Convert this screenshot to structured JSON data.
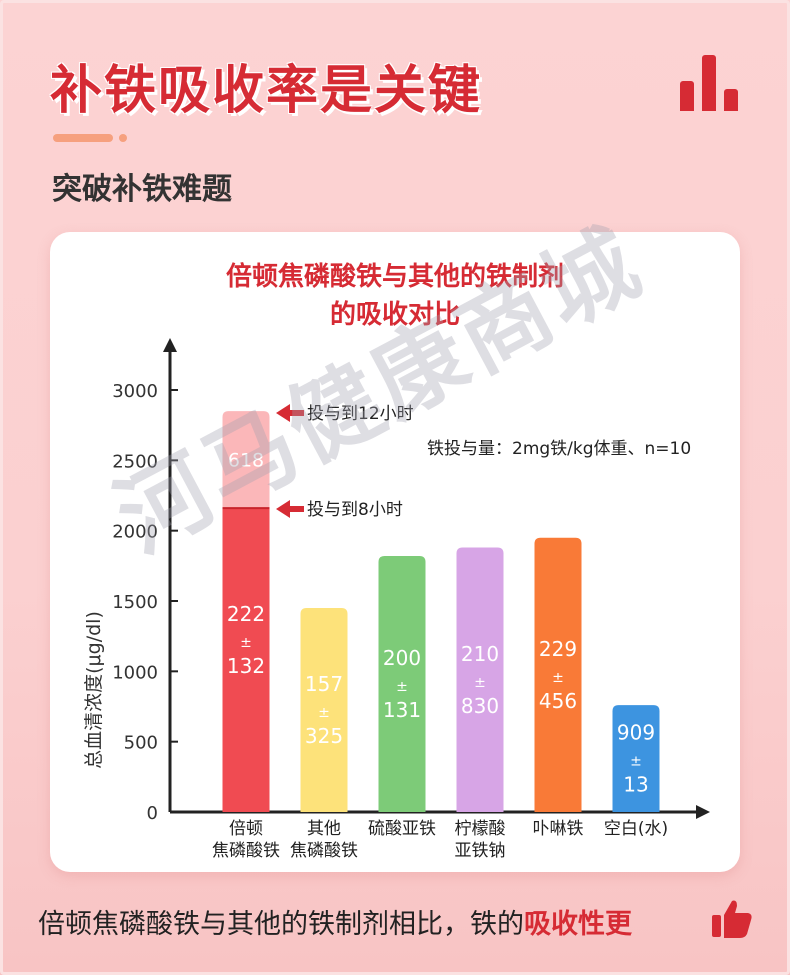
{
  "header": {
    "title": "补铁吸收率是关键",
    "subtitle": "突破补铁难题",
    "icon": "bar-chart-icon"
  },
  "colors": {
    "accent": "#d62b34",
    "dash": "#f6a07e"
  },
  "chart_data": {
    "type": "bar",
    "title_line1": "倍顿焦磷酸铁与其他的铁制剂",
    "title_line2": "的吸收对比",
    "ylabel": "总血清浓度(μg/dl)",
    "ylim": [
      0,
      3000
    ],
    "yticks": [
      "0",
      "500",
      "1000",
      "1500",
      "2000",
      "2500",
      "3000"
    ],
    "note": "铁投与量：2mg铁/kg体重、n=10",
    "annotations": [
      {
        "text": "投与到12小时",
        "value": 2850
      },
      {
        "text": "投与到8小时",
        "value": 2160
      }
    ],
    "categories": [
      {
        "line1": "倍顿",
        "line2": "焦磷酸铁"
      },
      {
        "line1": "其他",
        "line2": "焦磷酸铁"
      },
      {
        "line1": "硫酸亚铁",
        "line2": ""
      },
      {
        "line1": "柠檬酸",
        "line2": "亚铁钠"
      },
      {
        "line1": "卟啉铁",
        "line2": ""
      },
      {
        "line1": "空白(水)",
        "line2": ""
      }
    ],
    "series": [
      {
        "values": [
          2160,
          1450,
          1820,
          1880,
          1950,
          760
        ],
        "labels": [
          [
            "222",
            "±",
            "132"
          ],
          [
            "157",
            "±",
            "325"
          ],
          [
            "200",
            "±",
            "131"
          ],
          [
            "210",
            "±",
            "830"
          ],
          [
            "229",
            "±",
            "456"
          ],
          [
            "909",
            "±",
            "13"
          ]
        ],
        "colors": [
          "#f04b52",
          "#fde27a",
          "#7dcb78",
          "#d7a5e6",
          "#f97a37",
          "#3d94e0"
        ]
      },
      {
        "values": [
          690,
          0,
          0,
          0,
          0,
          0
        ],
        "labels": [
          [
            "618"
          ],
          [],
          [],
          [],
          [],
          []
        ],
        "colors": [
          "#fbb7b9"
        ]
      }
    ]
  },
  "watermark": "河马健康商城",
  "footer": {
    "text": "倍顿焦磷酸铁与其他的铁制剂相比，铁的",
    "highlight": "吸收性更",
    "icon": "thumbs-up-icon"
  }
}
